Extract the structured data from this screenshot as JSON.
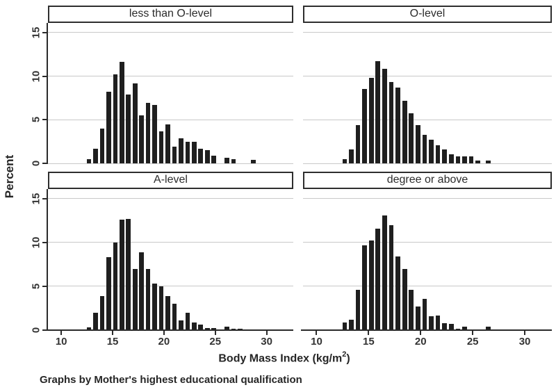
{
  "chart_data": {
    "type": "bar",
    "subtype": "histogram-small-multiples",
    "facet_by": "Mother's highest educational qualification",
    "ylabel": "Percent",
    "xlabel": "Body Mass Index (kg/m^2)",
    "xlabel_parts": {
      "main": "Body Mass Index (kg/m",
      "sup": "2",
      "end": ")"
    },
    "footnote": "Graphs by Mother's highest educational qualification",
    "x_ticks": [
      10,
      15,
      20,
      25,
      30
    ],
    "y_ticks": [
      0,
      5,
      10,
      15
    ],
    "x_range": [
      8.7,
      32.6
    ],
    "y_range": [
      0,
      16.1
    ],
    "bin_width": 0.64,
    "grid": "horizontal-only",
    "legend": "none",
    "bar_color": "#1f1f1f",
    "gridline_color": "#c9c9c9",
    "axis_color": "#2a2a2a",
    "panels": [
      {
        "title": "less than O-level",
        "row": 0,
        "col": 0,
        "bars": [
          [
            12.7,
            0.5
          ],
          [
            13.34,
            1.7
          ],
          [
            13.98,
            4.0
          ],
          [
            14.62,
            8.2
          ],
          [
            15.26,
            10.2
          ],
          [
            15.9,
            11.6
          ],
          [
            16.54,
            7.9
          ],
          [
            17.18,
            9.2
          ],
          [
            17.82,
            5.5
          ],
          [
            18.46,
            6.9
          ],
          [
            19.1,
            6.7
          ],
          [
            19.74,
            3.7
          ],
          [
            20.38,
            4.5
          ],
          [
            21.02,
            1.9
          ],
          [
            21.66,
            2.9
          ],
          [
            22.3,
            2.5
          ],
          [
            22.94,
            2.5
          ],
          [
            23.58,
            1.7
          ],
          [
            24.22,
            1.5
          ],
          [
            24.86,
            0.9
          ],
          [
            26.14,
            0.6
          ],
          [
            26.78,
            0.5
          ],
          [
            28.7,
            0.4
          ]
        ]
      },
      {
        "title": "O-level",
        "row": 0,
        "col": 1,
        "bars": [
          [
            12.7,
            0.5
          ],
          [
            13.34,
            1.6
          ],
          [
            13.98,
            4.4
          ],
          [
            14.62,
            8.5
          ],
          [
            15.26,
            9.8
          ],
          [
            15.9,
            11.7
          ],
          [
            16.54,
            10.8
          ],
          [
            17.18,
            9.3
          ],
          [
            17.82,
            8.7
          ],
          [
            18.46,
            7.2
          ],
          [
            19.1,
            5.7
          ],
          [
            19.74,
            4.4
          ],
          [
            20.38,
            3.3
          ],
          [
            21.02,
            2.7
          ],
          [
            21.66,
            2.1
          ],
          [
            22.3,
            1.6
          ],
          [
            22.94,
            1.0
          ],
          [
            23.58,
            0.8
          ],
          [
            24.22,
            0.8
          ],
          [
            24.86,
            0.8
          ],
          [
            25.5,
            0.3
          ],
          [
            26.5,
            0.35
          ]
        ]
      },
      {
        "title": "A-level",
        "row": 1,
        "col": 0,
        "bars": [
          [
            12.7,
            0.3
          ],
          [
            13.34,
            2.0
          ],
          [
            13.98,
            3.9
          ],
          [
            14.62,
            8.3
          ],
          [
            15.26,
            10.0
          ],
          [
            15.9,
            12.6
          ],
          [
            16.54,
            12.7
          ],
          [
            17.18,
            7.0
          ],
          [
            17.82,
            8.9
          ],
          [
            18.46,
            7.0
          ],
          [
            19.1,
            5.3
          ],
          [
            19.74,
            5.0
          ],
          [
            20.38,
            3.9
          ],
          [
            21.02,
            3.0
          ],
          [
            21.66,
            1.1
          ],
          [
            22.3,
            2.0
          ],
          [
            22.94,
            0.9
          ],
          [
            23.58,
            0.6
          ],
          [
            24.22,
            0.25
          ],
          [
            24.86,
            0.2
          ],
          [
            26.14,
            0.4
          ],
          [
            26.78,
            0.15
          ],
          [
            27.42,
            0.15
          ]
        ]
      },
      {
        "title": "degree or above",
        "row": 1,
        "col": 1,
        "bars": [
          [
            12.7,
            0.9
          ],
          [
            13.34,
            1.2
          ],
          [
            13.98,
            4.6
          ],
          [
            14.62,
            9.7
          ],
          [
            15.26,
            10.2
          ],
          [
            15.9,
            11.6
          ],
          [
            16.54,
            13.1
          ],
          [
            17.18,
            12.0
          ],
          [
            17.82,
            8.4
          ],
          [
            18.46,
            7.0
          ],
          [
            19.1,
            4.6
          ],
          [
            19.74,
            2.7
          ],
          [
            20.38,
            3.6
          ],
          [
            21.02,
            1.6
          ],
          [
            21.66,
            1.7
          ],
          [
            22.3,
            0.8
          ],
          [
            22.94,
            0.7
          ],
          [
            23.58,
            0.15
          ],
          [
            24.22,
            0.4
          ],
          [
            26.5,
            0.4
          ]
        ]
      }
    ]
  }
}
